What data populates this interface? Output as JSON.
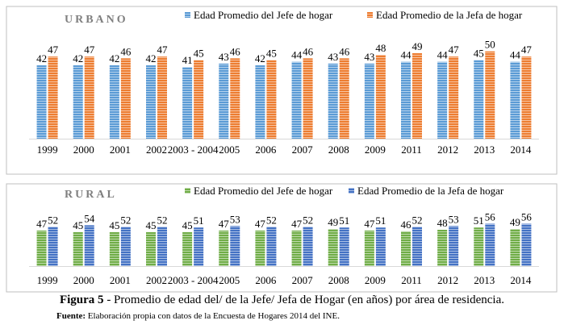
{
  "chart_data": [
    {
      "type": "bar",
      "title": "URBANO",
      "categories": [
        "1999",
        "2000",
        "2001",
        "2002",
        "2003 - 2004",
        "2005",
        "2006",
        "2007",
        "2008",
        "2009",
        "2011",
        "2012",
        "2013",
        "2014"
      ],
      "series": [
        {
          "name": "Edad Promedio del Jefe de hogar",
          "values": [
            42,
            42,
            42,
            42,
            41,
            43,
            42,
            44,
            43,
            43,
            44,
            44,
            45,
            44
          ],
          "color": "#5b9bd5"
        },
        {
          "name": "Edad Promedio de la Jefa de hogar",
          "values": [
            47,
            47,
            46,
            47,
            45,
            46,
            45,
            46,
            46,
            48,
            49,
            47,
            50,
            47
          ],
          "color": "#ed7d31"
        }
      ],
      "ylim": [
        0,
        60
      ],
      "grid": false,
      "legend": "top"
    },
    {
      "type": "bar",
      "title": "RURAL",
      "categories": [
        "1999",
        "2000",
        "2001",
        "2002",
        "2003 - 2004",
        "2005",
        "2006",
        "2007",
        "2008",
        "2009",
        "2011",
        "2012",
        "2013",
        "2014"
      ],
      "series": [
        {
          "name": "Edad Promedio del Jefe de hogar",
          "values": [
            47,
            45,
            45,
            45,
            45,
            47,
            47,
            47,
            49,
            47,
            46,
            48,
            51,
            49
          ],
          "color": "#70ad47"
        },
        {
          "name": "Edad Promedio de la Jefa de hogar",
          "values": [
            52,
            54,
            52,
            52,
            51,
            53,
            52,
            52,
            51,
            51,
            52,
            53,
            56,
            56
          ],
          "color": "#4472c4"
        }
      ],
      "ylim": [
        0,
        160
      ],
      "grid": false,
      "legend": "top"
    }
  ],
  "caption": {
    "label": "Figura 5",
    "text": " - Promedio de edad del/ de la Jefe/ Jefa de Hogar (en años) por área de residencia."
  },
  "source": {
    "label": "Fuente:",
    "text": " Elaboración propia con datos de la Encuesta de Hogares 2014 del INE."
  }
}
